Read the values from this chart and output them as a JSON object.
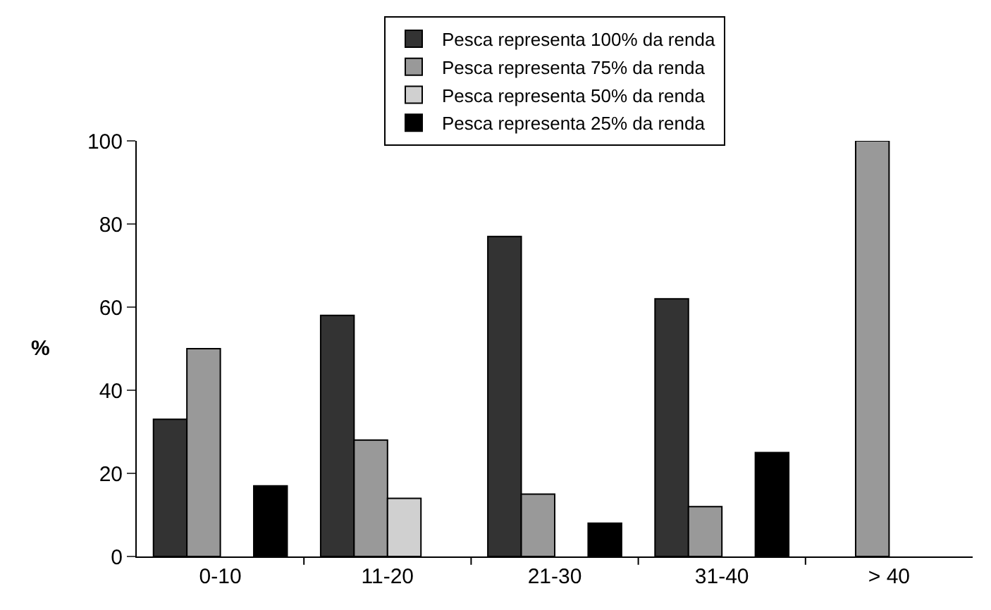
{
  "chart_data": {
    "type": "bar",
    "ylabel": "%",
    "categories": [
      "0-10",
      "11-20",
      "21-30",
      "31-40",
      "> 40"
    ],
    "series": [
      {
        "name": "Pesca representa 100% da renda",
        "color": "#333333",
        "values": [
          33,
          58,
          77,
          62,
          null
        ]
      },
      {
        "name": "Pesca representa 75% da renda",
        "color": "#999999",
        "values": [
          50,
          28,
          15,
          12,
          100
        ]
      },
      {
        "name": "Pesca representa 50% da renda",
        "color": "#d0d0d0",
        "values": [
          null,
          14,
          null,
          null,
          null
        ]
      },
      {
        "name": "Pesca representa 25% da renda",
        "color": "#000000",
        "values": [
          17,
          null,
          8,
          25,
          null
        ]
      }
    ],
    "ylim": [
      0,
      100
    ],
    "yticks": [
      0,
      20,
      40,
      60,
      80,
      100
    ],
    "legend": "top"
  }
}
